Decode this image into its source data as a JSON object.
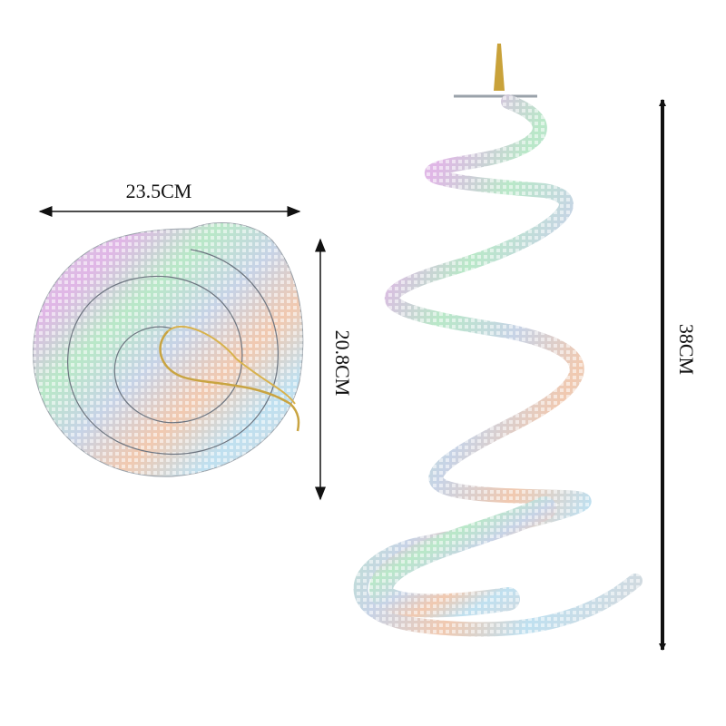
{
  "dimensions": {
    "disc_width": "23.5CM",
    "disc_height": "20.8CM",
    "spiral_length": "38CM"
  }
}
